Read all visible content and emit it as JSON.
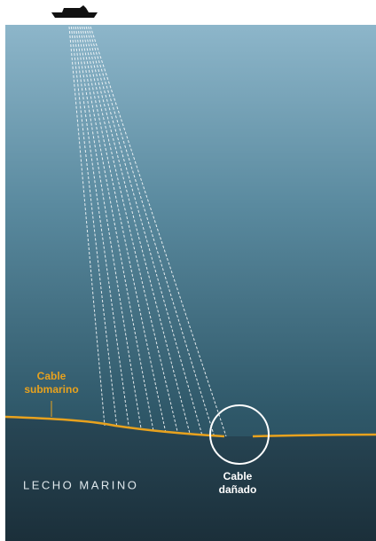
{
  "labels": {
    "cable": {
      "line1": "Cable",
      "line2": "submarino"
    },
    "seabed": "LECHO MARINO",
    "damage": {
      "line1": "Cable",
      "line2": "dañado"
    }
  }
}
